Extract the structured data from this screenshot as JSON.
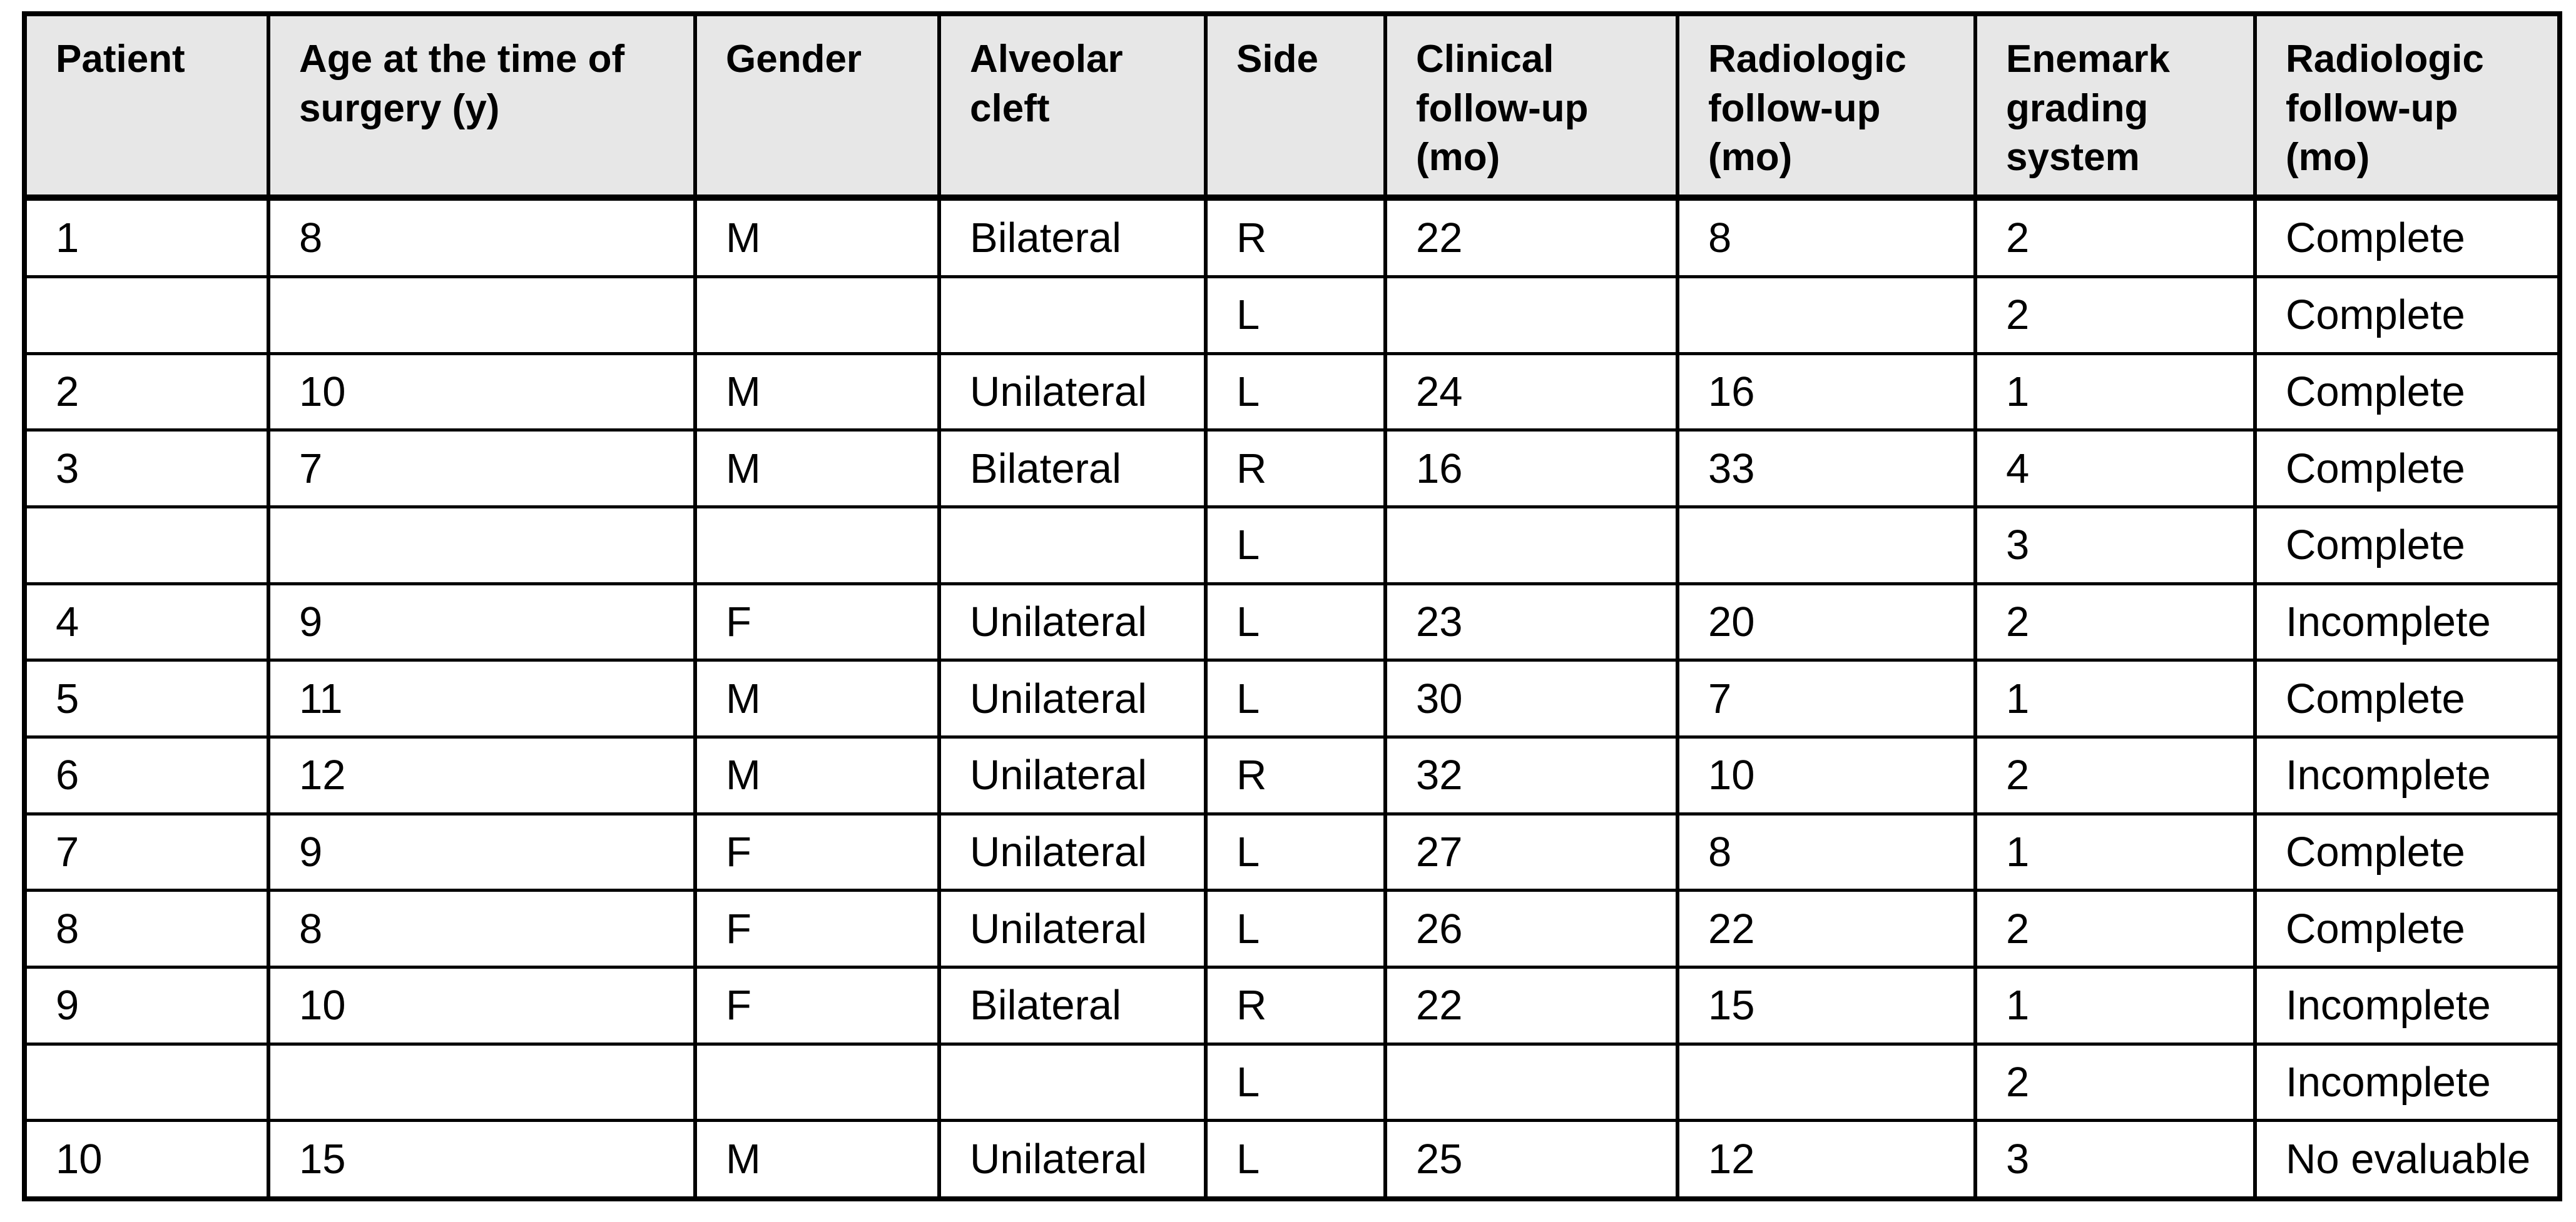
{
  "table": {
    "columns": [
      "Patient",
      "Age at the time of surgery (y)",
      "Gender",
      "Alveolar cleft",
      "Side",
      "Clinical follow-up (mo)",
      "Radiologic follow-up (mo)",
      "Enemark grading system",
      "Radiologic follow-up (mo)"
    ],
    "rows": [
      [
        "1",
        "8",
        "M",
        "Bilateral",
        "R",
        "22",
        "8",
        "2",
        "Complete"
      ],
      [
        "",
        "",
        "",
        "",
        "L",
        "",
        "",
        "2",
        "Complete"
      ],
      [
        "2",
        "10",
        "M",
        "Unilateral",
        "L",
        "24",
        "16",
        "1",
        "Complete"
      ],
      [
        "3",
        "7",
        "M",
        "Bilateral",
        "R",
        "16",
        "33",
        "4",
        "Complete"
      ],
      [
        "",
        "",
        "",
        "",
        "L",
        "",
        "",
        "3",
        "Complete"
      ],
      [
        "4",
        "9",
        "F",
        "Unilateral",
        "L",
        "23",
        "20",
        "2",
        "Incomplete"
      ],
      [
        "5",
        "11",
        "M",
        "Unilateral",
        "L",
        "30",
        "7",
        "1",
        "Complete"
      ],
      [
        "6",
        "12",
        "M",
        "Unilateral",
        "R",
        "32",
        "10",
        "2",
        "Incomplete"
      ],
      [
        "7",
        "9",
        "F",
        "Unilateral",
        "L",
        "27",
        "8",
        "1",
        "Complete"
      ],
      [
        "8",
        "8",
        "F",
        "Unilateral",
        "L",
        "26",
        "22",
        "2",
        "Complete"
      ],
      [
        "9",
        "10",
        "F",
        "Bilateral",
        "R",
        "22",
        "15",
        "1",
        "Incomplete"
      ],
      [
        "",
        "",
        "",
        "",
        "L",
        "",
        "",
        "2",
        "Incomplete"
      ],
      [
        "10",
        "15",
        "M",
        "Unilateral",
        "L",
        "25",
        "12",
        "3",
        "No evaluable"
      ]
    ],
    "colors": {
      "header_bg": "#e7e7e7",
      "border": "#000000",
      "background": "#ffffff",
      "text": "#000000"
    }
  }
}
